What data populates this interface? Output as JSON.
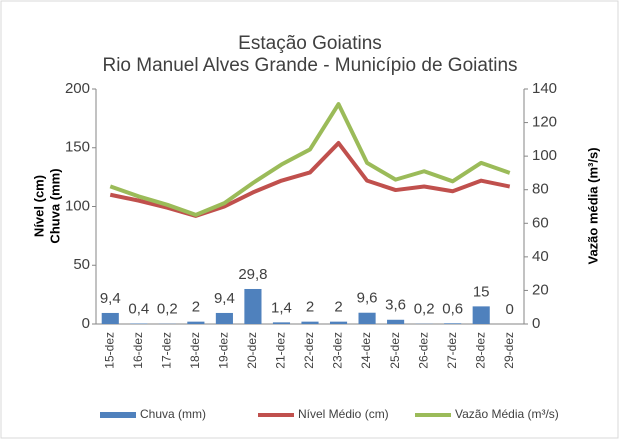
{
  "chart_data": {
    "type": "bar-line",
    "title": "Estação Goiatins",
    "subtitle": "Rio Manuel Alves Grande - Município de Goiatins",
    "ylabel": [
      "Nível (cm)",
      "Chuva (mm)"
    ],
    "y2label": "Vazão média (m³/s)",
    "categories": [
      "15-dez",
      "16-dez",
      "17-dez",
      "18-dez",
      "19-dez",
      "20-dez",
      "21-dez",
      "22-dez",
      "23-dez",
      "24-dez",
      "25-dez",
      "26-dez",
      "27-dez",
      "28-dez",
      "29-dez"
    ],
    "series": [
      {
        "name": "Chuva (mm)",
        "type": "bar",
        "color": "#4f81bd",
        "values": [
          9.4,
          0.4,
          0.2,
          2,
          9.4,
          29.8,
          1.4,
          2,
          2,
          9.6,
          3.6,
          0.2,
          0.6,
          15,
          0
        ],
        "value_labels": [
          "9,4",
          "0,4",
          "0,2",
          "2",
          "9,4",
          "29,8",
          "1,4",
          "2",
          "2",
          "9,6",
          "3,6",
          "0,2",
          "0,6",
          "15",
          "0"
        ]
      },
      {
        "name": "Nível Médio (cm)",
        "type": "line",
        "color": "#c0504d",
        "values": [
          110,
          105,
          99,
          92,
          100,
          112,
          122,
          129,
          154,
          122,
          114,
          117,
          113,
          122,
          117
        ]
      },
      {
        "name": "Vazão Média (m³/s)",
        "type": "line",
        "color": "#9bbb59",
        "axis": "y2",
        "values": [
          82,
          76,
          71,
          65,
          72,
          84,
          95,
          104,
          131,
          96,
          86,
          91,
          85,
          96,
          90
        ]
      }
    ],
    "ylim": [
      0,
      200
    ],
    "yticks": [
      0,
      50,
      100,
      150,
      200
    ],
    "y2lim": [
      0,
      140
    ],
    "y2ticks": [
      0,
      20,
      40,
      60,
      80,
      100,
      120,
      140
    ],
    "legend": "bottom"
  }
}
